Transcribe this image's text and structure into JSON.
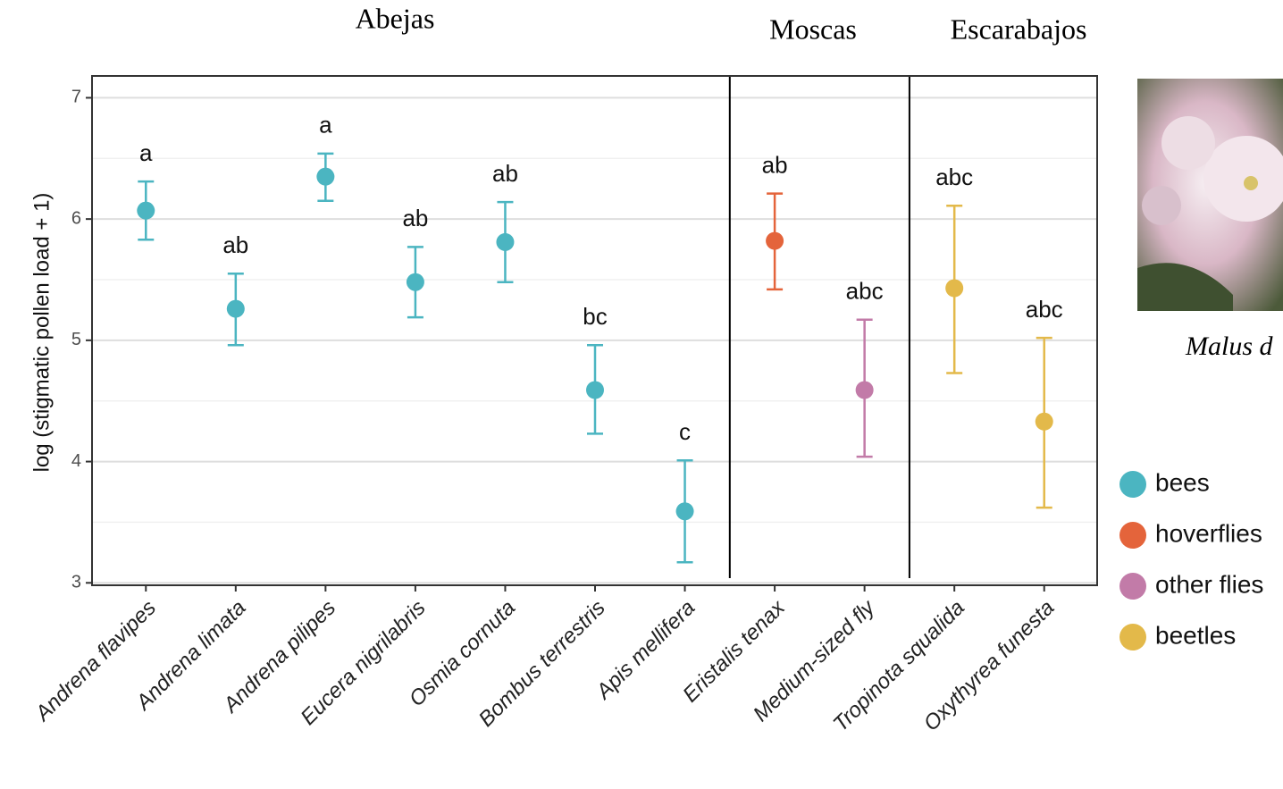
{
  "chart_data": {
    "type": "errorbar",
    "y_label": "log (stigmatic pollen load + 1)",
    "group_labels": [
      "Abejas",
      "Moscas",
      "Escarabajos"
    ],
    "image_caption": "Malus d",
    "categories": [
      "Andrena flavipes",
      "Andrena limata",
      "Andrena pilipes",
      "Eucera nigrilabris",
      "Osmia cornuta",
      "Bombus terrestris",
      "Apis mellifera",
      "Eristalis tenax",
      "Medium-sized fly",
      "Tropinota squalida",
      "Oxythyrea funesta"
    ],
    "letters": [
      "a",
      "ab",
      "a",
      "ab",
      "ab",
      "bc",
      "c",
      "ab",
      "abc",
      "abc",
      "abc"
    ],
    "series": [
      {
        "name": "bees",
        "color": "#4bb5c1",
        "values": [
          6.07,
          5.26,
          6.35,
          5.48,
          5.81,
          4.59,
          3.59,
          null,
          null,
          null,
          null
        ],
        "lower": [
          5.83,
          4.96,
          6.15,
          5.19,
          5.48,
          4.23,
          3.17,
          null,
          null,
          null,
          null
        ],
        "upper": [
          6.31,
          5.55,
          6.54,
          5.77,
          6.14,
          4.96,
          4.01,
          null,
          null,
          null,
          null
        ]
      },
      {
        "name": "hoverflies",
        "color": "#e4643b",
        "values": [
          null,
          null,
          null,
          null,
          null,
          null,
          null,
          5.82,
          null,
          null,
          null
        ],
        "lower": [
          null,
          null,
          null,
          null,
          null,
          null,
          null,
          5.42,
          null,
          null,
          null
        ],
        "upper": [
          null,
          null,
          null,
          null,
          null,
          null,
          null,
          6.21,
          null,
          null,
          null
        ]
      },
      {
        "name": "other flies",
        "color": "#c27ba8",
        "values": [
          null,
          null,
          null,
          null,
          null,
          null,
          null,
          null,
          4.59,
          null,
          null
        ],
        "lower": [
          null,
          null,
          null,
          null,
          null,
          null,
          null,
          null,
          4.04,
          null,
          null
        ],
        "upper": [
          null,
          null,
          null,
          null,
          null,
          null,
          null,
          null,
          5.17,
          null,
          null
        ]
      },
      {
        "name": "beetles",
        "color": "#e3b94a",
        "values": [
          null,
          null,
          null,
          null,
          null,
          null,
          null,
          null,
          null,
          5.43,
          4.33
        ],
        "lower": [
          null,
          null,
          null,
          null,
          null,
          null,
          null,
          null,
          null,
          4.73,
          3.62
        ],
        "upper": [
          null,
          null,
          null,
          null,
          null,
          null,
          null,
          null,
          null,
          6.11,
          5.02
        ]
      }
    ],
    "ylim": [
      2.98,
      7.18
    ],
    "yticks": [
      3,
      4,
      5,
      6,
      7
    ],
    "minor_yticks": [
      3.5,
      4.5,
      5.5,
      6.5
    ],
    "grid": true
  }
}
